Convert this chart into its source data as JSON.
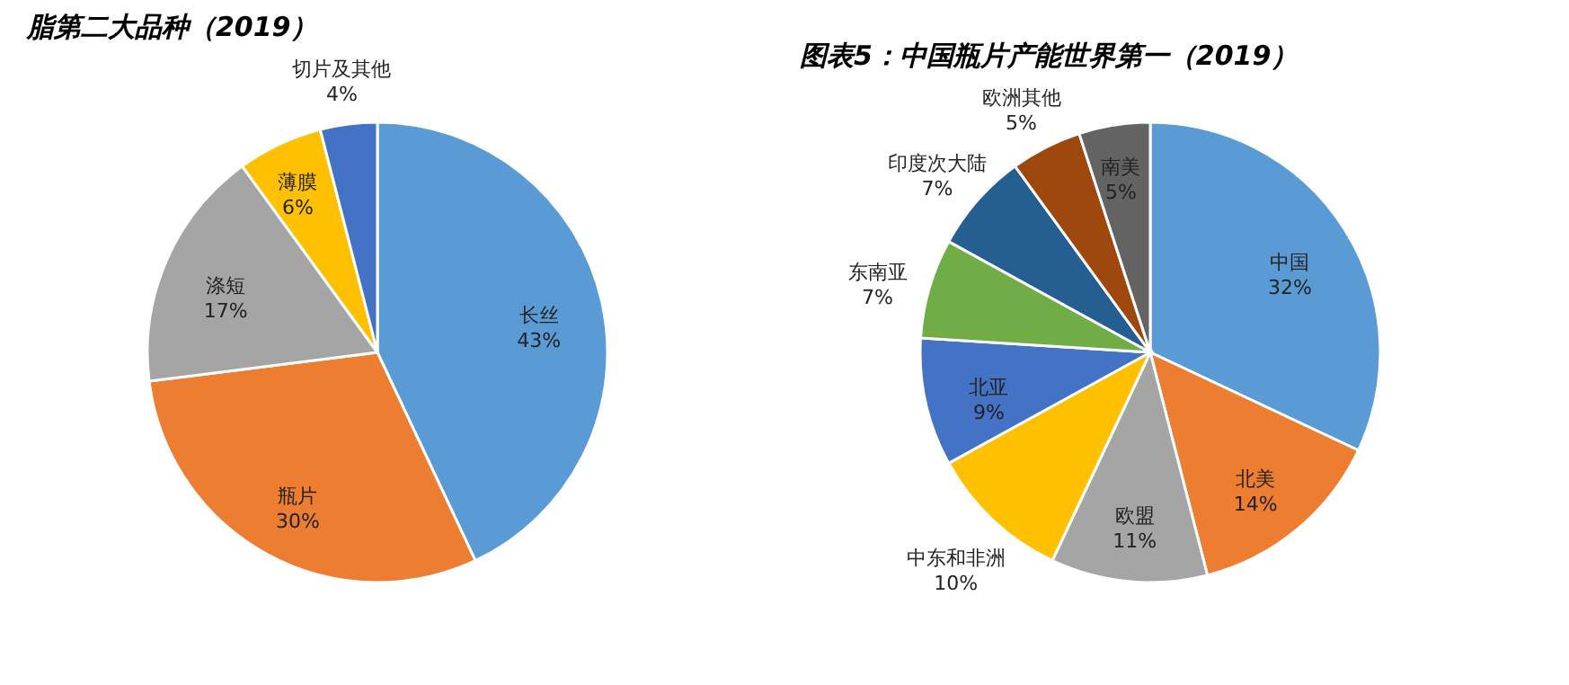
{
  "chart_data": [
    {
      "type": "pie",
      "title": "脂第二大品种（2019）",
      "categories": [
        "长丝",
        "瓶片",
        "涤短",
        "薄膜",
        "切片及其他"
      ],
      "values": [
        43,
        30,
        17,
        6,
        4
      ],
      "value_labels": [
        "43%",
        "30%",
        "17%",
        "6%",
        "4%"
      ],
      "colors": [
        "#5b9bd5",
        "#ed7d31",
        "#a5a5a5",
        "#ffc000",
        "#4472c4"
      ],
      "legend": false
    },
    {
      "type": "pie",
      "title": "图表5：中国瓶片产能世界第一（2019）",
      "categories": [
        "中国",
        "北美",
        "欧盟",
        "中东和非洲",
        "北亚",
        "东南亚",
        "印度次大陆",
        "欧洲其他",
        "南美"
      ],
      "values": [
        32,
        14,
        11,
        10,
        9,
        7,
        7,
        5,
        5
      ],
      "value_labels": [
        "32%",
        "14%",
        "11%",
        "10%",
        "9%",
        "7%",
        "7%",
        "5%",
        "5%"
      ],
      "colors": [
        "#5b9bd5",
        "#ed7d31",
        "#a5a5a5",
        "#ffc000",
        "#4472c4",
        "#70ad47",
        "#255e91",
        "#9e480e",
        "#636363"
      ],
      "legend": false
    }
  ]
}
